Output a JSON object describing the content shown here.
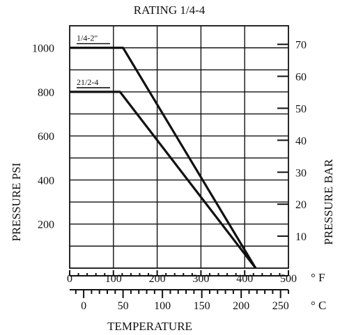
{
  "chart_data": {
    "type": "line",
    "title": "RATING 1/4-4",
    "ylabel": "PRESSURE PSI",
    "y2label": "PRESSURE BAR",
    "xlabel": "TEMPERATURE",
    "x_unit_f": "° F",
    "x_unit_c": "° C",
    "xlim_f": [
      0,
      500
    ],
    "ylim_psi": [
      0,
      1100
    ],
    "ylim_bar": [
      0,
      75.8
    ],
    "grid": true,
    "y_ticks_psi": [
      200,
      400,
      600,
      800,
      1000
    ],
    "y_ticks_bar": [
      10,
      20,
      30,
      40,
      50,
      60,
      70
    ],
    "x_ticks_f": [
      0,
      100,
      200,
      300,
      400,
      500
    ],
    "x_ticks_c": [
      0,
      50,
      100,
      150,
      200,
      250
    ],
    "series": [
      {
        "name": "1/4-2\"",
        "x_f": [
          0,
          122,
          425
        ],
        "y_psi": [
          1000,
          1000,
          0
        ]
      },
      {
        "name": "21/2-4",
        "x_f": [
          0,
          115,
          425
        ],
        "y_psi": [
          800,
          800,
          0
        ]
      }
    ]
  }
}
